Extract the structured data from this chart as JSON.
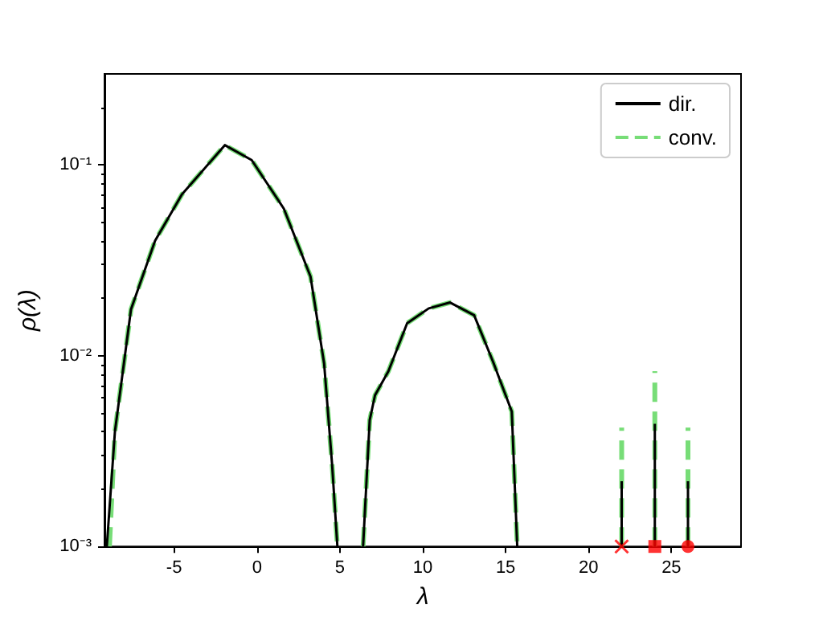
{
  "chart_data": {
    "type": "line",
    "xlabel": "λ",
    "ylabel": "ρ(λ)",
    "log": "y",
    "grid": false,
    "legend": "top right",
    "xlim": [
      -9.2,
      29.2
    ],
    "xticks": [
      -5,
      0,
      5,
      10,
      15,
      20,
      25
    ],
    "ylim": [
      0.001,
      0.3
    ],
    "yticks": [
      {
        "value": 0.001,
        "label": "10⁻³"
      },
      {
        "value": 0.01,
        "label": "10⁻²"
      },
      {
        "value": 0.1,
        "label": "10⁻¹"
      }
    ],
    "series": [
      {
        "name": "dir.",
        "color": "#000000",
        "line_style": "solid",
        "x": [
          -9.06,
          -8.57,
          -7.6,
          -6.15,
          -4.53,
          -1.94,
          -0.32,
          1.62,
          3.23,
          4.05,
          4.53,
          4.85,
          5.5,
          6.4,
          6.8,
          7.12,
          7.93,
          9.06,
          10.36,
          11.65,
          13.1,
          14.24,
          15.37,
          15.7,
          18,
          22,
          22,
          23,
          24,
          24,
          25,
          26,
          26
        ],
        "values": [
          0.001,
          0.004,
          0.0175,
          0.04,
          0.07,
          0.127,
          0.106,
          0.059,
          0.026,
          0.0091,
          0.0027,
          0.001,
          null,
          0.001,
          0.0046,
          0.0062,
          0.0083,
          0.0148,
          0.0177,
          0.019,
          0.0163,
          0.0093,
          0.0051,
          0.001,
          null,
          0.001,
          0.0022,
          null,
          0.001,
          0.0044,
          null,
          0.001,
          0.0022
        ]
      },
      {
        "name": "conv.",
        "color": "#77dd77",
        "line_style": "dashed",
        "x": [
          -8.9,
          -8.57,
          -7.6,
          -6.15,
          -4.53,
          -1.94,
          -0.32,
          1.62,
          3.23,
          4.05,
          4.53,
          4.85,
          5.5,
          6.4,
          6.8,
          7.12,
          7.93,
          9.06,
          10.36,
          11.65,
          13.1,
          14.24,
          15.37,
          15.7,
          18,
          22,
          22,
          23,
          24,
          24,
          25,
          26,
          26
        ],
        "values": [
          0.001,
          0.004,
          0.0175,
          0.04,
          0.07,
          0.127,
          0.106,
          0.059,
          0.026,
          0.0091,
          0.0027,
          0.001,
          null,
          0.001,
          0.0046,
          0.0062,
          0.0083,
          0.0148,
          0.0177,
          0.019,
          0.0163,
          0.0093,
          0.0051,
          0.001,
          null,
          0.001,
          0.0042,
          null,
          0.001,
          0.0083,
          null,
          0.001,
          0.0042
        ]
      },
      {
        "type": "scatter",
        "marker": "cross",
        "color": "#ff0000",
        "x": [
          22
        ],
        "values": [
          0.001
        ]
      },
      {
        "type": "scatter",
        "marker": "square",
        "color": "#ff0000",
        "x": [
          24
        ],
        "values": [
          0.001
        ]
      },
      {
        "type": "scatter",
        "marker": "circle",
        "color": "#ff0000",
        "x": [
          26
        ],
        "values": [
          0.001
        ]
      }
    ]
  }
}
